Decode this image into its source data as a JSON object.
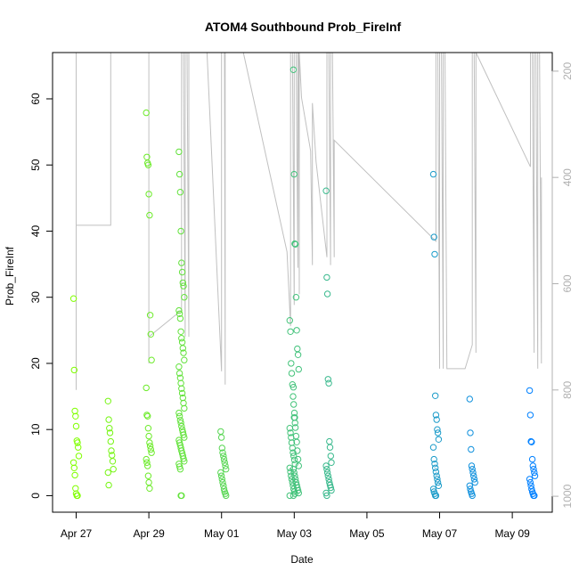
{
  "chart_data": {
    "type": "scatter",
    "title": "ATOM4 Southbound Prob_FireInf",
    "xlabel": "Date",
    "ylabel": "Prob_FireInf",
    "x_ticks": [
      "Apr 27",
      "Apr 29",
      "May 01",
      "May 03",
      "May 05",
      "May 07",
      "May 09"
    ],
    "x_tick_days": [
      0,
      2,
      4,
      6,
      8,
      10,
      12
    ],
    "xlim_days": [
      -0.65,
      13.1
    ],
    "ylim": [
      -2.5,
      67
    ],
    "y_ticks": [
      0,
      10,
      20,
      30,
      40,
      50,
      60
    ],
    "right_axis": {
      "ticks": [
        200,
        400,
        600,
        800,
        1000
      ],
      "ylim": [
        1030,
        165
      ],
      "color": "#b0b0b0"
    },
    "grid": false,
    "point_colors": {
      "start": "#80ff00",
      "end": "#0080ff"
    },
    "series": [
      {
        "kind": "points",
        "groups": [
          {
            "day": 0.0,
            "values": [
              29.8,
              19.0,
              12.8,
              12.0,
              10.5,
              8.3,
              8.0,
              7.3,
              6.0,
              5.0,
              4.2,
              3.1,
              1.1,
              0.3,
              0.0,
              0.0
            ]
          },
          {
            "day": 0.95,
            "values": [
              14.3,
              11.5,
              10.2,
              9.5,
              8.2,
              6.8,
              6.1,
              5.2,
              4.0,
              3.5,
              1.6
            ]
          },
          {
            "day": 2.0,
            "values": [
              57.9,
              51.2,
              50.3,
              50.0,
              45.6,
              42.4,
              27.3,
              24.4,
              20.5,
              16.3,
              12.2,
              12.0,
              10.2,
              9.0,
              8.0,
              7.5,
              7.0,
              6.5,
              5.5,
              5.0,
              4.5,
              3.0,
              2.0,
              1.1
            ]
          },
          {
            "day": 2.9,
            "values": [
              52.0,
              48.6,
              45.9,
              40.0,
              35.2,
              33.8,
              32.2,
              31.7,
              30.0,
              28.0,
              27.5,
              26.8,
              24.8,
              23.8,
              23.2,
              22.3,
              21.6,
              20.5,
              19.5,
              18.5,
              17.8,
              17.0,
              16.2,
              15.5,
              14.8,
              14.0,
              13.2,
              12.5,
              12.0,
              11.4,
              11.0,
              10.5,
              10.0,
              9.6,
              9.2,
              8.8,
              8.4,
              8.0,
              7.6,
              7.2,
              6.8,
              6.4,
              6.0,
              5.6,
              5.2,
              4.8,
              4.4,
              4.0,
              0.0,
              0.0
            ]
          },
          {
            "day": 4.05,
            "values": [
              9.7,
              8.8,
              7.2,
              6.5,
              6.0,
              5.5,
              5.0,
              4.5,
              4.0,
              3.5,
              3.0,
              2.5,
              2.0,
              1.5,
              1.0,
              0.6,
              0.3,
              0.0
            ]
          },
          {
            "day": 5.95,
            "values": [
              26.5,
              24.8,
              20.0,
              18.5,
              16.8,
              15.0,
              13.8,
              12.5,
              11.0,
              10.2,
              9.5,
              8.8,
              8.0,
              7.2,
              6.5,
              6.0,
              5.4,
              4.8,
              4.2,
              3.6,
              3.0,
              2.5,
              2.0,
              1.5,
              1.0,
              0.6,
              0.3,
              0.0
            ]
          },
          {
            "day": 6.05,
            "values": [
              64.4,
              48.6,
              38.1,
              38.0,
              30.0,
              25.0,
              22.2,
              21.3,
              19.1,
              16.4,
              11.8,
              11.8,
              10.3,
              9.0,
              8.1,
              6.8,
              5.5,
              4.5,
              4.0,
              3.5,
              3.0,
              2.5,
              2.0,
              1.6,
              1.2,
              0.8,
              0.4,
              0.0
            ]
          },
          {
            "day": 6.95,
            "values": [
              46.1,
              33.0,
              30.5,
              17.6,
              17.0,
              8.2,
              7.3,
              6.0,
              5.0,
              4.5,
              4.0,
              3.5,
              3.0,
              2.5,
              2.0,
              1.6,
              1.2,
              0.8,
              0.4,
              0.0
            ]
          },
          {
            "day": 9.9,
            "values": [
              48.6,
              39.1,
              36.5,
              15.1,
              12.2,
              11.5,
              10.0,
              9.5,
              8.5,
              7.3,
              5.5,
              4.8,
              4.2,
              3.6,
              3.0,
              2.5,
              2.0,
              1.5,
              1.0,
              0.6,
              0.3,
              0.0,
              0.0
            ]
          },
          {
            "day": 10.9,
            "values": [
              14.6,
              9.5,
              7.0,
              4.5,
              4.0,
              3.5,
              3.0,
              2.5,
              2.0,
              1.5,
              1.0,
              0.6,
              0.3,
              0.0
            ]
          },
          {
            "day": 12.55,
            "values": [
              15.9,
              12.2,
              8.2,
              8.1,
              5.5,
              4.5,
              4.0,
              3.5,
              3.0,
              2.5,
              2.0,
              1.5,
              1.0,
              0.6,
              0.3,
              0.0,
              0.0
            ]
          }
        ]
      },
      {
        "kind": "line",
        "axis": "right",
        "color": "#c0c0c0",
        "points": [
          [
            0.0,
            165
          ],
          [
            0.0,
            800
          ],
          [
            0.0,
            490
          ],
          [
            0.95,
            490
          ],
          [
            0.95,
            165
          ],
          [
            2.0,
            165
          ],
          [
            2.0,
            750
          ],
          [
            2.0,
            700
          ],
          [
            2.9,
            650
          ],
          [
            2.9,
            165
          ],
          [
            2.95,
            165
          ],
          [
            3.0,
            700
          ],
          [
            3.0,
            165
          ],
          [
            3.05,
            165
          ],
          [
            3.1,
            700
          ],
          [
            3.1,
            165
          ],
          [
            3.15,
            165
          ],
          [
            3.6,
            165
          ],
          [
            4.0,
            765
          ],
          [
            4.0,
            165
          ],
          [
            4.08,
            165
          ],
          [
            4.1,
            790
          ],
          [
            4.1,
            165
          ],
          [
            4.6,
            165
          ],
          [
            5.8,
            540
          ],
          [
            5.9,
            680
          ],
          [
            5.9,
            165
          ],
          [
            5.95,
            165
          ],
          [
            6.0,
            640
          ],
          [
            6.0,
            165
          ],
          [
            6.05,
            165
          ],
          [
            6.1,
            570
          ],
          [
            6.1,
            165
          ],
          [
            6.12,
            165
          ],
          [
            6.14,
            620
          ],
          [
            6.14,
            165
          ],
          [
            6.2,
            250
          ],
          [
            6.45,
            350
          ],
          [
            6.5,
            565
          ],
          [
            6.5,
            260
          ],
          [
            6.6,
            370
          ],
          [
            6.9,
            550
          ],
          [
            6.9,
            165
          ],
          [
            6.95,
            165
          ],
          [
            7.0,
            565
          ],
          [
            7.0,
            165
          ],
          [
            7.05,
            165
          ],
          [
            7.1,
            550
          ],
          [
            7.1,
            330
          ],
          [
            9.9,
            520
          ],
          [
            9.9,
            165
          ],
          [
            9.95,
            165
          ],
          [
            10.0,
            760
          ],
          [
            10.0,
            165
          ],
          [
            10.05,
            165
          ],
          [
            10.1,
            760
          ],
          [
            10.1,
            165
          ],
          [
            10.15,
            165
          ],
          [
            10.2,
            760
          ],
          [
            10.3,
            760
          ],
          [
            10.7,
            760
          ],
          [
            10.9,
            715
          ],
          [
            10.9,
            165
          ],
          [
            10.95,
            165
          ],
          [
            11.0,
            730
          ],
          [
            11.0,
            165
          ],
          [
            12.5,
            380
          ],
          [
            12.5,
            165
          ],
          [
            12.55,
            165
          ],
          [
            12.6,
            730
          ],
          [
            12.6,
            165
          ],
          [
            12.65,
            165
          ],
          [
            12.7,
            760
          ],
          [
            12.7,
            165
          ],
          [
            12.75,
            165
          ],
          [
            12.8,
            750
          ],
          [
            12.8,
            400
          ]
        ]
      }
    ]
  }
}
